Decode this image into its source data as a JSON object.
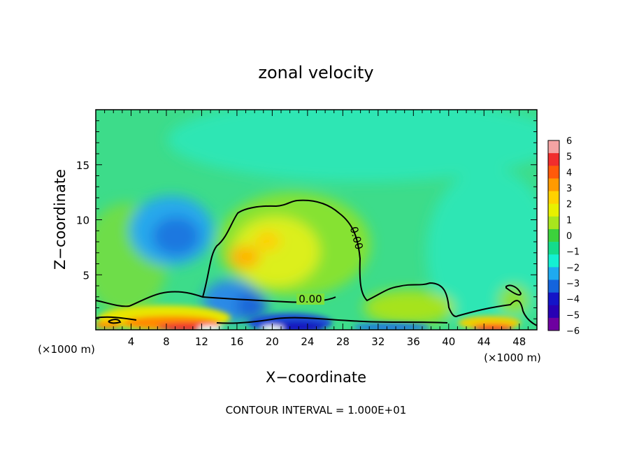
{
  "chart_data": {
    "type": "heatmap",
    "title": "zonal velocity",
    "xlabel": "X−coordinate",
    "ylabel": "Z−coordinate",
    "x_unit_left": "(×1000 m)",
    "x_unit_right": "(×1000 m)",
    "footer": "CONTOUR INTERVAL = 1.000E+01",
    "xlim": [
      0,
      50
    ],
    "ylim": [
      0,
      20
    ],
    "x_ticks": [
      4,
      8,
      12,
      16,
      20,
      24,
      28,
      32,
      36,
      40,
      44,
      48
    ],
    "y_ticks": [
      5,
      10,
      15
    ],
    "contour_label": "0.00",
    "colorbar": {
      "ticks": [
        6,
        5,
        4,
        3,
        2,
        1,
        0,
        -1,
        -2,
        -3,
        -4,
        -5,
        -6
      ],
      "colors": [
        "#f4a3a3",
        "#f02d2d",
        "#ff5a0a",
        "#ff9a00",
        "#ffd200",
        "#e8f000",
        "#a8e61e",
        "#3cd23c",
        "#14dc8c",
        "#14f0d2",
        "#1eaaf0",
        "#1464dc",
        "#1414c8",
        "#2800b4",
        "#6e00a0"
      ]
    },
    "fields": [
      {
        "name": "background-aloft",
        "x": 25,
        "y": 16,
        "value": -1.2
      },
      {
        "name": "eddy-left",
        "x": 8.5,
        "y": 8.5,
        "value": -3
      },
      {
        "name": "bubble-center",
        "x": 19,
        "y": 7.5,
        "value": 1.5
      },
      {
        "name": "bubble-core-max",
        "x": 17.5,
        "y": 6.5,
        "value": 3
      },
      {
        "name": "surface-jet",
        "x": 10,
        "y": 1,
        "value": 3.5
      },
      {
        "name": "surface-low",
        "x": 21.5,
        "y": 0.6,
        "value": -5
      },
      {
        "name": "surface-right-max",
        "x": 45,
        "y": 0.5,
        "value": 4
      }
    ]
  }
}
